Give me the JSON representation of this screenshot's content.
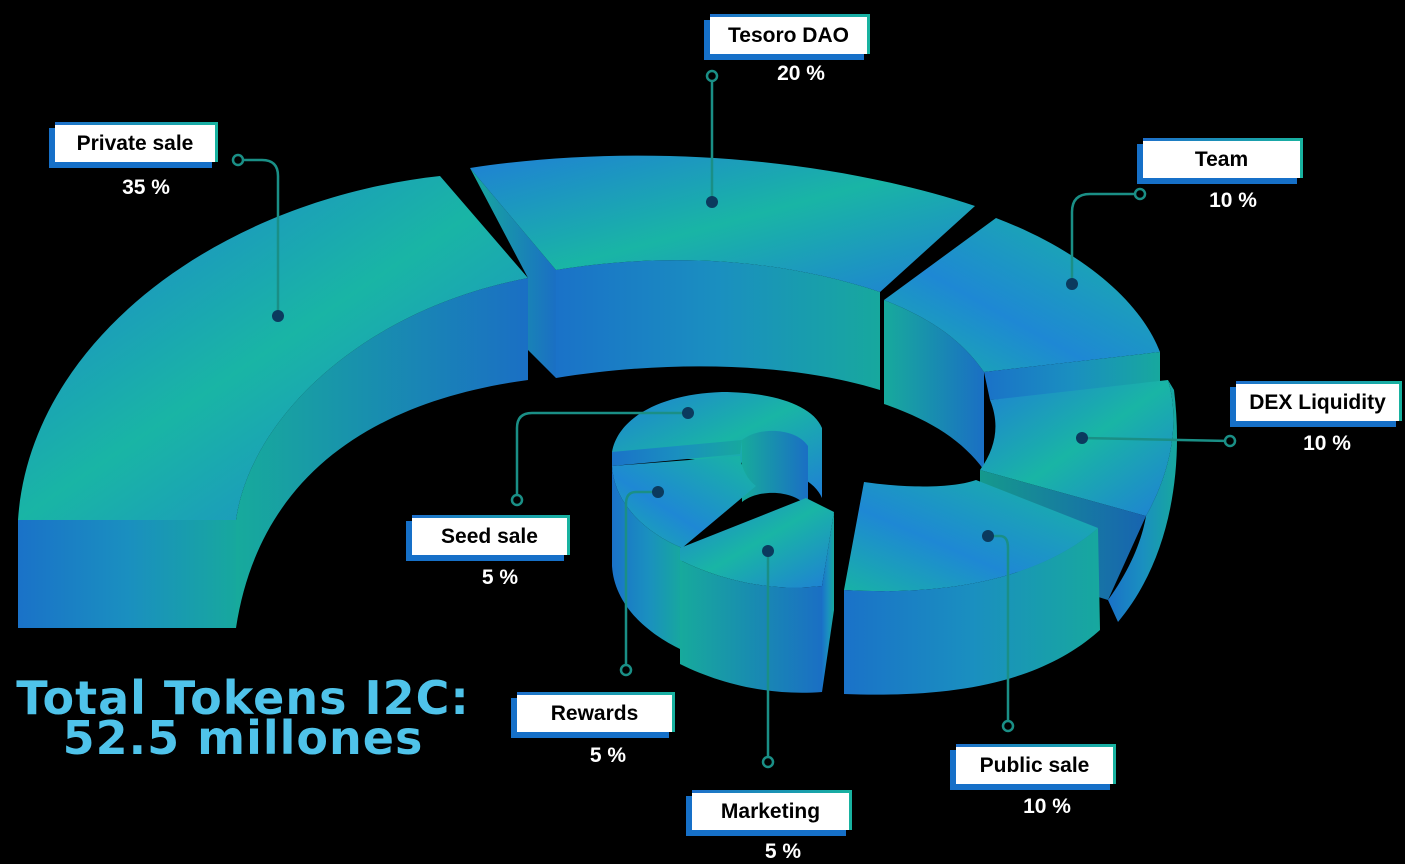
{
  "total": {
    "line1": "Total Tokens I2C:",
    "line2": "52.5 millones"
  },
  "chart_data": {
    "type": "pie",
    "categories": [
      "Private sale",
      "Tesoro DAO",
      "Team",
      "DEX Liquidity",
      "Public sale",
      "Marketing",
      "Rewards",
      "Seed sale"
    ],
    "values": [
      35,
      20,
      10,
      10,
      10,
      5,
      5,
      5
    ],
    "value_labels": [
      "35 %",
      "20 %",
      "10 %",
      "10 %",
      "10 %",
      "5 %",
      "5 %",
      "5 %"
    ]
  },
  "colors": {
    "teal": "#16b8a2",
    "blue": "#1a73cf",
    "line": "#1a8f86"
  }
}
